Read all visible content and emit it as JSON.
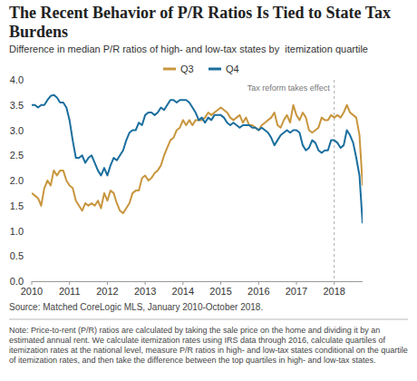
{
  "chart_data": {
    "type": "line",
    "title": "The Recent Behavior of P/R Ratios Is Tied to State Tax Burdens",
    "subtitle": "Difference in median P/R ratios of high- and low-tax states by  itemization quartile",
    "source": "Source: Matched CoreLogic MLS, January 2010-October 2018.",
    "note": "Note: Price-to-rent (P/R) ratios are calculated by taking the sale price on the home and dividing it by an estimated annual rent. We calculate itemization rates using IRS data through 2016, calculate quartiles of itemization rates at the national level, measure P/R ratios in high- and low-tax states conditional on the quartile of itemization rates, and then take the difference between the top quartiles in high- and low-tax states.",
    "legend": "top",
    "grid": false,
    "annotations": [
      {
        "text": "Tax reform takes effect",
        "x": 2018
      }
    ],
    "x": [
      2010,
      2010.083,
      2010.167,
      2010.25,
      2010.333,
      2010.417,
      2010.5,
      2010.583,
      2010.667,
      2010.75,
      2010.833,
      2010.917,
      2011,
      2011.083,
      2011.167,
      2011.25,
      2011.333,
      2011.417,
      2011.5,
      2011.583,
      2011.667,
      2011.75,
      2011.833,
      2011.917,
      2012,
      2012.083,
      2012.167,
      2012.25,
      2012.333,
      2012.417,
      2012.5,
      2012.583,
      2012.667,
      2012.75,
      2012.833,
      2012.917,
      2013,
      2013.083,
      2013.167,
      2013.25,
      2013.333,
      2013.417,
      2013.5,
      2013.583,
      2013.667,
      2013.75,
      2013.833,
      2013.917,
      2014,
      2014.083,
      2014.167,
      2014.25,
      2014.333,
      2014.417,
      2014.5,
      2014.583,
      2014.667,
      2014.75,
      2014.833,
      2014.917,
      2015,
      2015.083,
      2015.167,
      2015.25,
      2015.333,
      2015.417,
      2015.5,
      2015.583,
      2015.667,
      2015.75,
      2015.833,
      2015.917,
      2016,
      2016.083,
      2016.167,
      2016.25,
      2016.333,
      2016.417,
      2016.5,
      2016.583,
      2016.667,
      2016.75,
      2016.833,
      2016.917,
      2017,
      2017.083,
      2017.167,
      2017.25,
      2017.333,
      2017.417,
      2017.5,
      2017.583,
      2017.667,
      2017.75,
      2017.833,
      2017.917,
      2018,
      2018.083,
      2018.167,
      2018.25,
      2018.333,
      2018.417,
      2018.5,
      2018.583,
      2018.667,
      2018.75
    ],
    "xlim": [
      2010,
      2018.75
    ],
    "xticks": [
      2010,
      2011,
      2012,
      2013,
      2014,
      2015,
      2016,
      2017,
      2018
    ],
    "ylim": [
      0,
      4
    ],
    "yticks": [
      {
        "value": 0,
        "label": "0.0"
      },
      {
        "value": 0.5,
        "label": "0.5"
      },
      {
        "value": 1,
        "label": "1.0"
      },
      {
        "value": 1.5,
        "label": "1.5"
      },
      {
        "value": 2,
        "label": "2.0"
      },
      {
        "value": 2.5,
        "label": "2.5"
      },
      {
        "value": 3,
        "label": "3.0"
      },
      {
        "value": 3.5,
        "label": "3.5"
      },
      {
        "value": 4,
        "label": "4.0"
      }
    ],
    "series": [
      {
        "name": "Q3",
        "color": "#c8963e",
        "values": [
          1.75,
          1.7,
          1.65,
          1.5,
          1.85,
          2.0,
          1.9,
          2.2,
          2.1,
          2.2,
          2.2,
          2.0,
          1.9,
          1.85,
          1.6,
          1.5,
          1.4,
          1.55,
          1.5,
          1.55,
          1.5,
          1.6,
          1.45,
          1.75,
          1.6,
          1.8,
          1.75,
          1.55,
          1.4,
          1.35,
          1.45,
          1.55,
          1.75,
          1.8,
          1.8,
          2.05,
          2.1,
          2.0,
          2.05,
          2.15,
          2.2,
          2.3,
          2.5,
          2.65,
          2.8,
          2.85,
          3.0,
          3.05,
          3.2,
          3.1,
          3.2,
          3.1,
          3.2,
          3.2,
          3.2,
          3.25,
          3.35,
          3.3,
          3.35,
          3.4,
          3.45,
          3.4,
          3.35,
          3.25,
          3.2,
          3.25,
          3.3,
          3.15,
          3.25,
          3.1,
          3.1,
          3.05,
          3.0,
          3.1,
          3.15,
          3.2,
          3.25,
          3.35,
          3.1,
          3.05,
          3.2,
          3.3,
          3.15,
          3.5,
          3.3,
          3.2,
          3.35,
          3.25,
          3.0,
          2.95,
          3.0,
          3.05,
          3.25,
          3.2,
          3.2,
          3.3,
          3.25,
          3.3,
          3.25,
          3.35,
          3.5,
          3.35,
          3.3,
          3.25,
          2.9,
          1.9
        ]
      },
      {
        "name": "Q4",
        "color": "#1a6e9e",
        "values": [
          3.5,
          3.5,
          3.45,
          3.5,
          3.5,
          3.6,
          3.68,
          3.7,
          3.65,
          3.55,
          3.55,
          3.45,
          3.2,
          2.8,
          2.45,
          2.45,
          2.5,
          2.35,
          2.45,
          2.5,
          2.35,
          2.2,
          2.1,
          2.25,
          2.1,
          2.3,
          2.45,
          2.4,
          2.5,
          2.6,
          2.8,
          2.95,
          3.0,
          3.0,
          3.15,
          3.1,
          3.3,
          3.35,
          3.35,
          3.3,
          3.35,
          3.45,
          3.4,
          3.5,
          3.6,
          3.6,
          3.55,
          3.6,
          3.6,
          3.6,
          3.55,
          3.45,
          3.35,
          3.2,
          3.25,
          3.15,
          3.25,
          3.2,
          3.3,
          3.3,
          3.3,
          3.25,
          3.15,
          3.1,
          3.15,
          3.1,
          3.05,
          3.1,
          3.1,
          3.1,
          3.05,
          3.05,
          3.0,
          3.05,
          3.0,
          2.95,
          2.85,
          2.7,
          2.8,
          2.9,
          2.95,
          3.0,
          2.95,
          3.0,
          3.0,
          2.95,
          2.7,
          2.6,
          2.65,
          2.8,
          2.75,
          2.6,
          2.55,
          2.6,
          2.6,
          2.8,
          2.8,
          2.75,
          2.65,
          2.7,
          3.0,
          2.9,
          2.75,
          2.45,
          2.1,
          1.15
        ]
      }
    ]
  }
}
